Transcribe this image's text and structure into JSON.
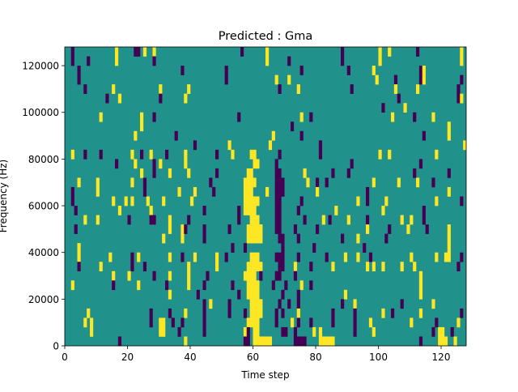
{
  "chart_data": {
    "type": "heatmap",
    "title": "Predicted : Gma",
    "xlabel": "Time step",
    "ylabel": "Frequency (Hz)",
    "xlim": [
      0,
      128
    ],
    "ylim": [
      0,
      128000
    ],
    "n_cols": 128,
    "n_rows": 32,
    "row_height_hz": 4000,
    "xticks": [
      0,
      20,
      40,
      60,
      80,
      100,
      120
    ],
    "yticks": [
      0,
      20000,
      40000,
      60000,
      80000,
      100000,
      120000
    ],
    "colors": {
      "background": "#21918c",
      "y": "#fde725",
      "p": "#440154"
    },
    "value_legend": {
      "p": "low",
      "background": "mid",
      "y": "high"
    },
    "rows_top_to_bottom": [
      "p2 y16 p22-23 y25 y28 p56 y64 p88 y100 y103 p112 y126",
      "p2 p7 y16 p28 y64 p71 p88 y100 y126",
      "p4 p37 p51 p75 p90 y98 p113 y114",
      "p4 p51 y67 y71 y99 p105 p113 y114 p126",
      "p6 y15 y30 y39 p68 y74 p91 y105 y112 p125",
      "p13 y17 p30 y38 p106 p125 y126",
      "p101 y108",
      "y11 y24 p28 p55 y75 p78 y104 p111 y117",
      "y24 p72 y122",
      "y22 p35 y66 p75 p114 y122",
      "p41 y52 y65 p81 y127",
      "y2 p6 p11 y21 p24 y27 p32 y38 p48 y53 y59-60 p68 p81 y100 y103 y118",
      "p16 y22 p28 y30 y38 y60-61 p67 p91 p113",
      "y24 p28 y33 y39 p48 y58-59 p67-68 y76 p85 p90 p111 p122",
      "y4 y10 y21 p25 p46 y57-60 p67-69 y77 p80 p83 y98 y106 y112 p117",
      "p2 y10 p25 y36 y41 p47 y57-59 y64 p67-69 y80 p96 y122",
      "p2 y15 y19 y21 y26 y31 y40 y57-61 p67-68 p75 y93 p96 y102 y118 p126",
      "p3 y17 y27 p44 p55 y57-60 p67-68 p74 y86 y101 p114",
      "y6 y10 p20 p27-28 y33 p39 p55 y59-61 p67-68 p76 y82 p84 y90 p96 y107 y110 p114",
      "p3 y33 y37 p38 p44 p52 y58-62 p67-68 p73 p80 y96 p103 y109 p115 y122",
      "y31 y37 p44 y58-62 p68-69 p74 p88 y93 p102 y122",
      "y4 p53 p57 p69 p79 p95 y122",
      "y4 y14 p21 y23 y33 p37 y41 y48 p51 y59-61 p67-69 p74 p83 y89 y93 p97 y110 y118 y121-122 p126",
      "p4 y11 p21 p25 y39 y48 y58-62 p68-69 y73 p78 y85 y96 y98 y101 y107 y111 p125",
      "y15 y20 p28 y33 y39 p45 y57-60 p62 p67-68 p73 y113",
      "y2 p15 y23 p32 y39 p44 p53 y58-61 p66 p70 y75 p78 y113",
      "y33 p42 p55 y58-61 p69 p74 y89 y113",
      "p44 y46 p52 y59-62 p68 p71 p74 p88 y92 p107 y117",
      "y7 p27 p33 y38 p44 p52 p57 y59-62 p67 p69 y74 p85 p92 y101 p104 y113 p126",
      "y6 y8 p27 y30-31 p34 p37 p44 y58-61 p67 y72 p74 p78 p85 p92 y97 y110 p118 y125",
      "y8 y30-31 p36 p44 y57 p58 y60-61 p69-70 p73 y79 y81 p92 y98 p117 y119-120 p123",
      "p17 y38 p57-58 y60-65 p73-76 y81-85 p113 y119-121 y124"
    ]
  }
}
